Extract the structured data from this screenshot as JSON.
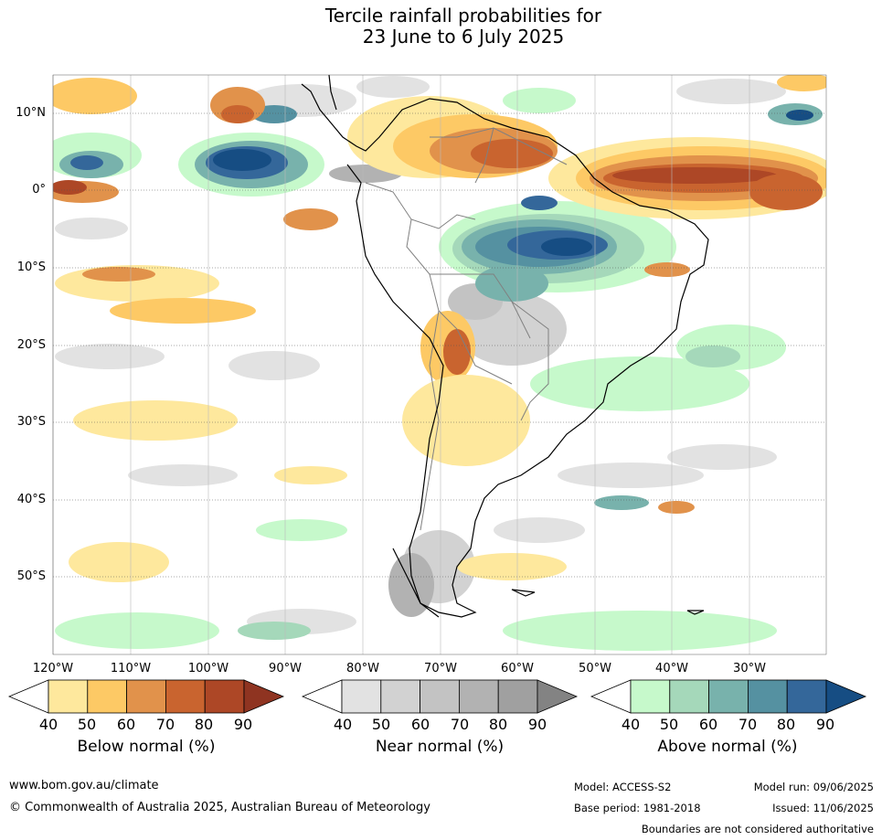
{
  "title_line1": "Tercile rainfall probabilities for",
  "title_line2": "23 June to 6 July 2025",
  "map": {
    "lat_labels": [
      "10°N",
      "0°",
      "10°S",
      "20°S",
      "30°S",
      "40°S",
      "50°S"
    ],
    "lon_labels": [
      "120°W",
      "110°W",
      "100°W",
      "90°W",
      "80°W",
      "70°W",
      "60°W",
      "50°W",
      "40°W",
      "30°W"
    ]
  },
  "colorbars": [
    {
      "title": "Below normal (%)",
      "ticks": [
        "40",
        "50",
        "60",
        "70",
        "80",
        "90"
      ],
      "colors": [
        "#ffffff",
        "#fee89d",
        "#fdc965",
        "#e1924b",
        "#c9642f",
        "#ad4726",
        "#8f3421"
      ]
    },
    {
      "title": "Near normal (%)",
      "ticks": [
        "40",
        "50",
        "60",
        "70",
        "80",
        "90"
      ],
      "colors": [
        "#ffffff",
        "#e2e2e2",
        "#d2d2d2",
        "#c3c3c3",
        "#b2b2b2",
        "#a0a0a0",
        "#838383"
      ]
    },
    {
      "title": "Above normal (%)",
      "ticks": [
        "40",
        "50",
        "60",
        "70",
        "80",
        "90"
      ],
      "colors": [
        "#ffffff",
        "#c6f9cb",
        "#a5d8ba",
        "#78b2ac",
        "#5591a1",
        "#34679a",
        "#164d83"
      ]
    }
  ],
  "footer": {
    "url": "www.bom.gov.au/climate",
    "copyright": "© Commonwealth of Australia 2025, Australian Bureau of Meteorology",
    "model": "Model: ACCESS-S2",
    "model_run": "Model run: 09/06/2025",
    "base_period": "Base period: 1981-2018",
    "issued": "Issued: 11/06/2025",
    "disclaimer": "Boundaries are not considered authoritative"
  }
}
